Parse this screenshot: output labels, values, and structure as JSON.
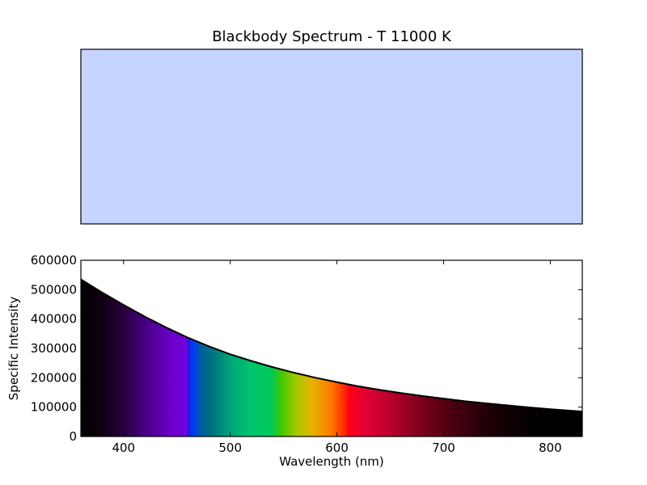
{
  "title": "Blackbody Spectrum - T 11000 K",
  "swatch_color": "#c6d5ff",
  "chart_data": {
    "type": "area",
    "title": "Blackbody Spectrum - T 11000 K",
    "xlabel": "Wavelength (nm)",
    "ylabel": "Specific Intensity",
    "xlim": [
      360,
      830
    ],
    "ylim": [
      0,
      600000
    ],
    "xticks": [
      400,
      500,
      600,
      700,
      800
    ],
    "xtick_labels": [
      "400",
      "500",
      "600",
      "700",
      "800"
    ],
    "yticks": [
      0,
      100000,
      200000,
      300000,
      400000,
      500000,
      600000
    ],
    "ytick_labels": [
      "0",
      "100000",
      "200000",
      "300000",
      "400000",
      "500000",
      "600000"
    ],
    "grid": false,
    "fill": "visible spectrum colors under the curve",
    "x": [
      360,
      380,
      400,
      420,
      440,
      460,
      480,
      500,
      520,
      540,
      560,
      580,
      600,
      620,
      640,
      660,
      680,
      700,
      720,
      740,
      760,
      780,
      800,
      830
    ],
    "y": [
      535000,
      490000,
      448000,
      408000,
      371000,
      337000,
      307000,
      280000,
      257000,
      236000,
      217000,
      200000,
      185000,
      171000,
      159000,
      148000,
      138000,
      129000,
      120000,
      113000,
      106000,
      99000,
      93000,
      85000
    ]
  }
}
